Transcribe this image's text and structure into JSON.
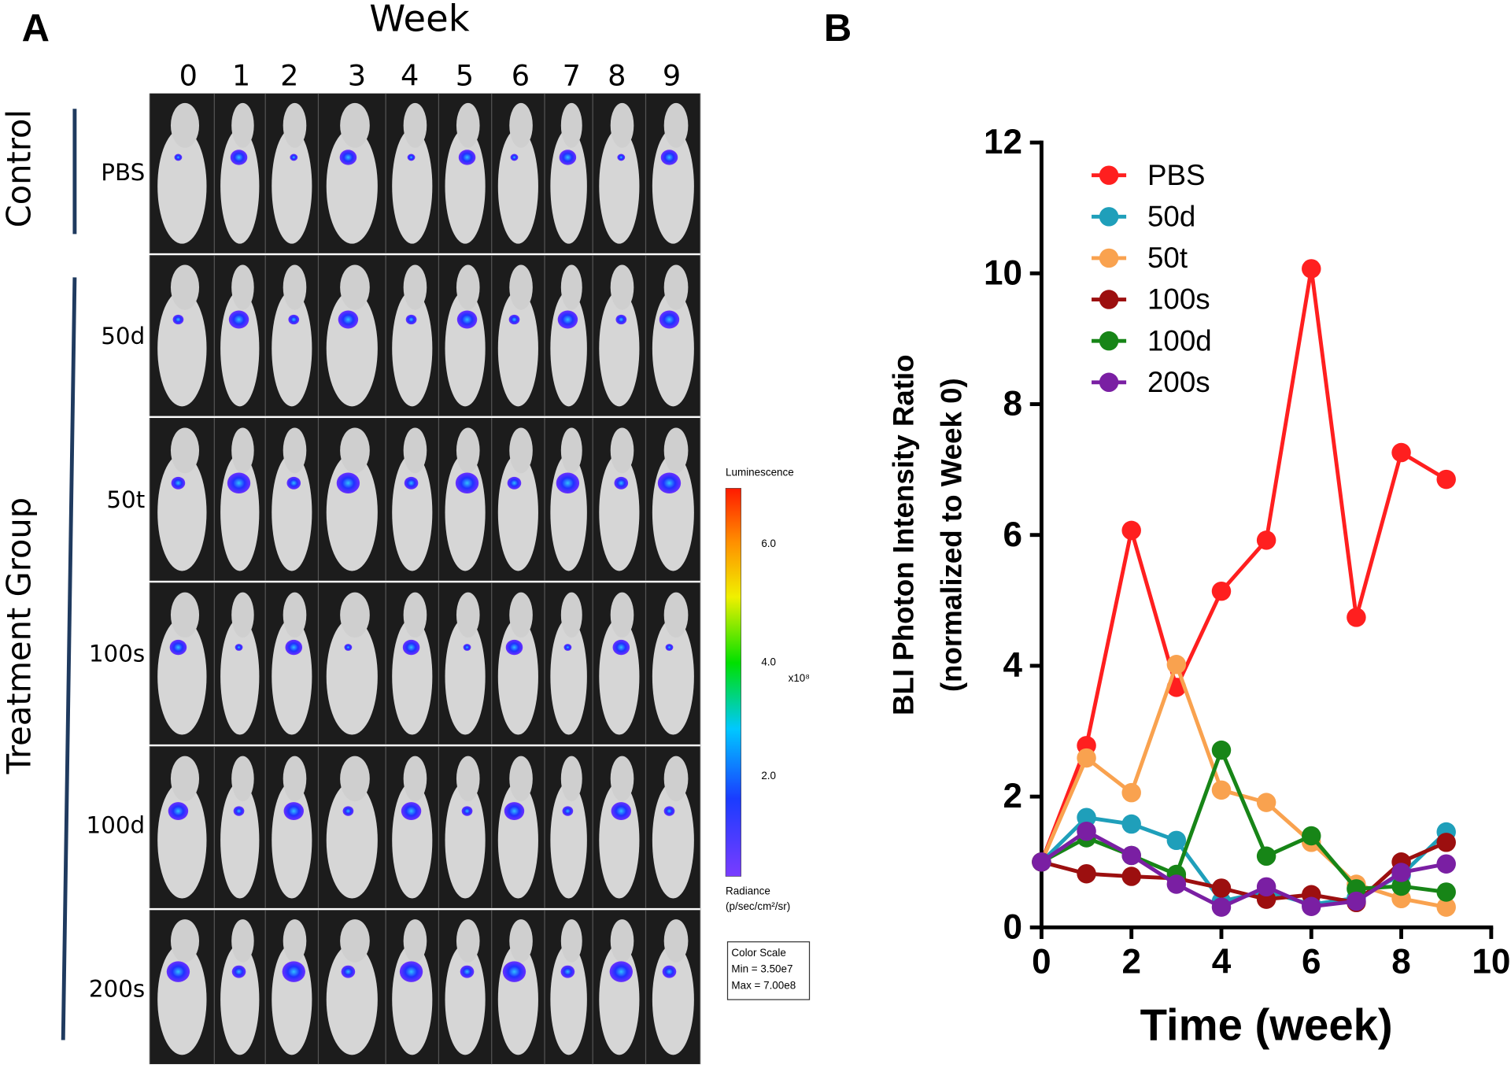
{
  "panel_a": {
    "label": "A",
    "week_title": "Week",
    "weeks": [
      "0",
      "1",
      "2",
      "3",
      "4",
      "5",
      "6",
      "7",
      "8",
      "9"
    ],
    "control_label": "Control",
    "treatment_label": "Treatment Group",
    "rows": [
      "PBS",
      "50d",
      "50t",
      "100s",
      "100d",
      "200s"
    ],
    "colorbar": {
      "title": "Luminescence",
      "ticks": [
        "6.0",
        "4.0",
        "2.0"
      ],
      "unit": "x10⁸",
      "radiance": "Radiance",
      "radiance_unit": "(p/sec/cm²/sr)",
      "scale_box": [
        "Color Scale",
        "Min = 3.50e7",
        "Max = 7.00e8"
      ]
    }
  },
  "chart_data": {
    "type": "line",
    "panel_label": "B",
    "xlabel": "Time (week)",
    "ylabel": [
      "BLI Photon Intensity Ratio",
      "(normalized to Week 0)"
    ],
    "x": [
      0,
      1,
      2,
      3,
      4,
      5,
      6,
      7,
      8,
      9
    ],
    "xlim": [
      0,
      10
    ],
    "xticks": [
      0,
      2,
      4,
      6,
      8,
      10
    ],
    "ylim": [
      0,
      12
    ],
    "yticks": [
      0,
      2,
      4,
      6,
      8,
      10,
      12
    ],
    "legend": "upper left",
    "series": [
      {
        "name": "PBS",
        "color": "#ff1f1f",
        "values": [
          1.0,
          2.78,
          6.07,
          3.67,
          5.14,
          5.92,
          10.07,
          4.74,
          7.26,
          6.85
        ]
      },
      {
        "name": "50d",
        "color": "#1f9fba",
        "values": [
          1.0,
          1.68,
          1.58,
          1.33,
          0.4,
          0.55,
          0.35,
          0.45,
          0.8,
          1.46
        ]
      },
      {
        "name": "50t",
        "color": "#f9a24f",
        "values": [
          1.0,
          2.59,
          2.06,
          4.02,
          2.1,
          1.91,
          1.3,
          0.66,
          0.44,
          0.31
        ]
      },
      {
        "name": "100s",
        "color": "#9c0f0f",
        "values": [
          1.0,
          0.82,
          0.78,
          0.75,
          0.6,
          0.43,
          0.5,
          0.38,
          1.0,
          1.3
        ]
      },
      {
        "name": "100d",
        "color": "#178517",
        "values": [
          1.0,
          1.37,
          1.1,
          0.81,
          2.71,
          1.09,
          1.4,
          0.59,
          0.63,
          0.54
        ]
      },
      {
        "name": "200s",
        "color": "#7a1fa3",
        "values": [
          1.0,
          1.47,
          1.1,
          0.66,
          0.31,
          0.62,
          0.32,
          0.4,
          0.84,
          0.97
        ]
      }
    ]
  }
}
